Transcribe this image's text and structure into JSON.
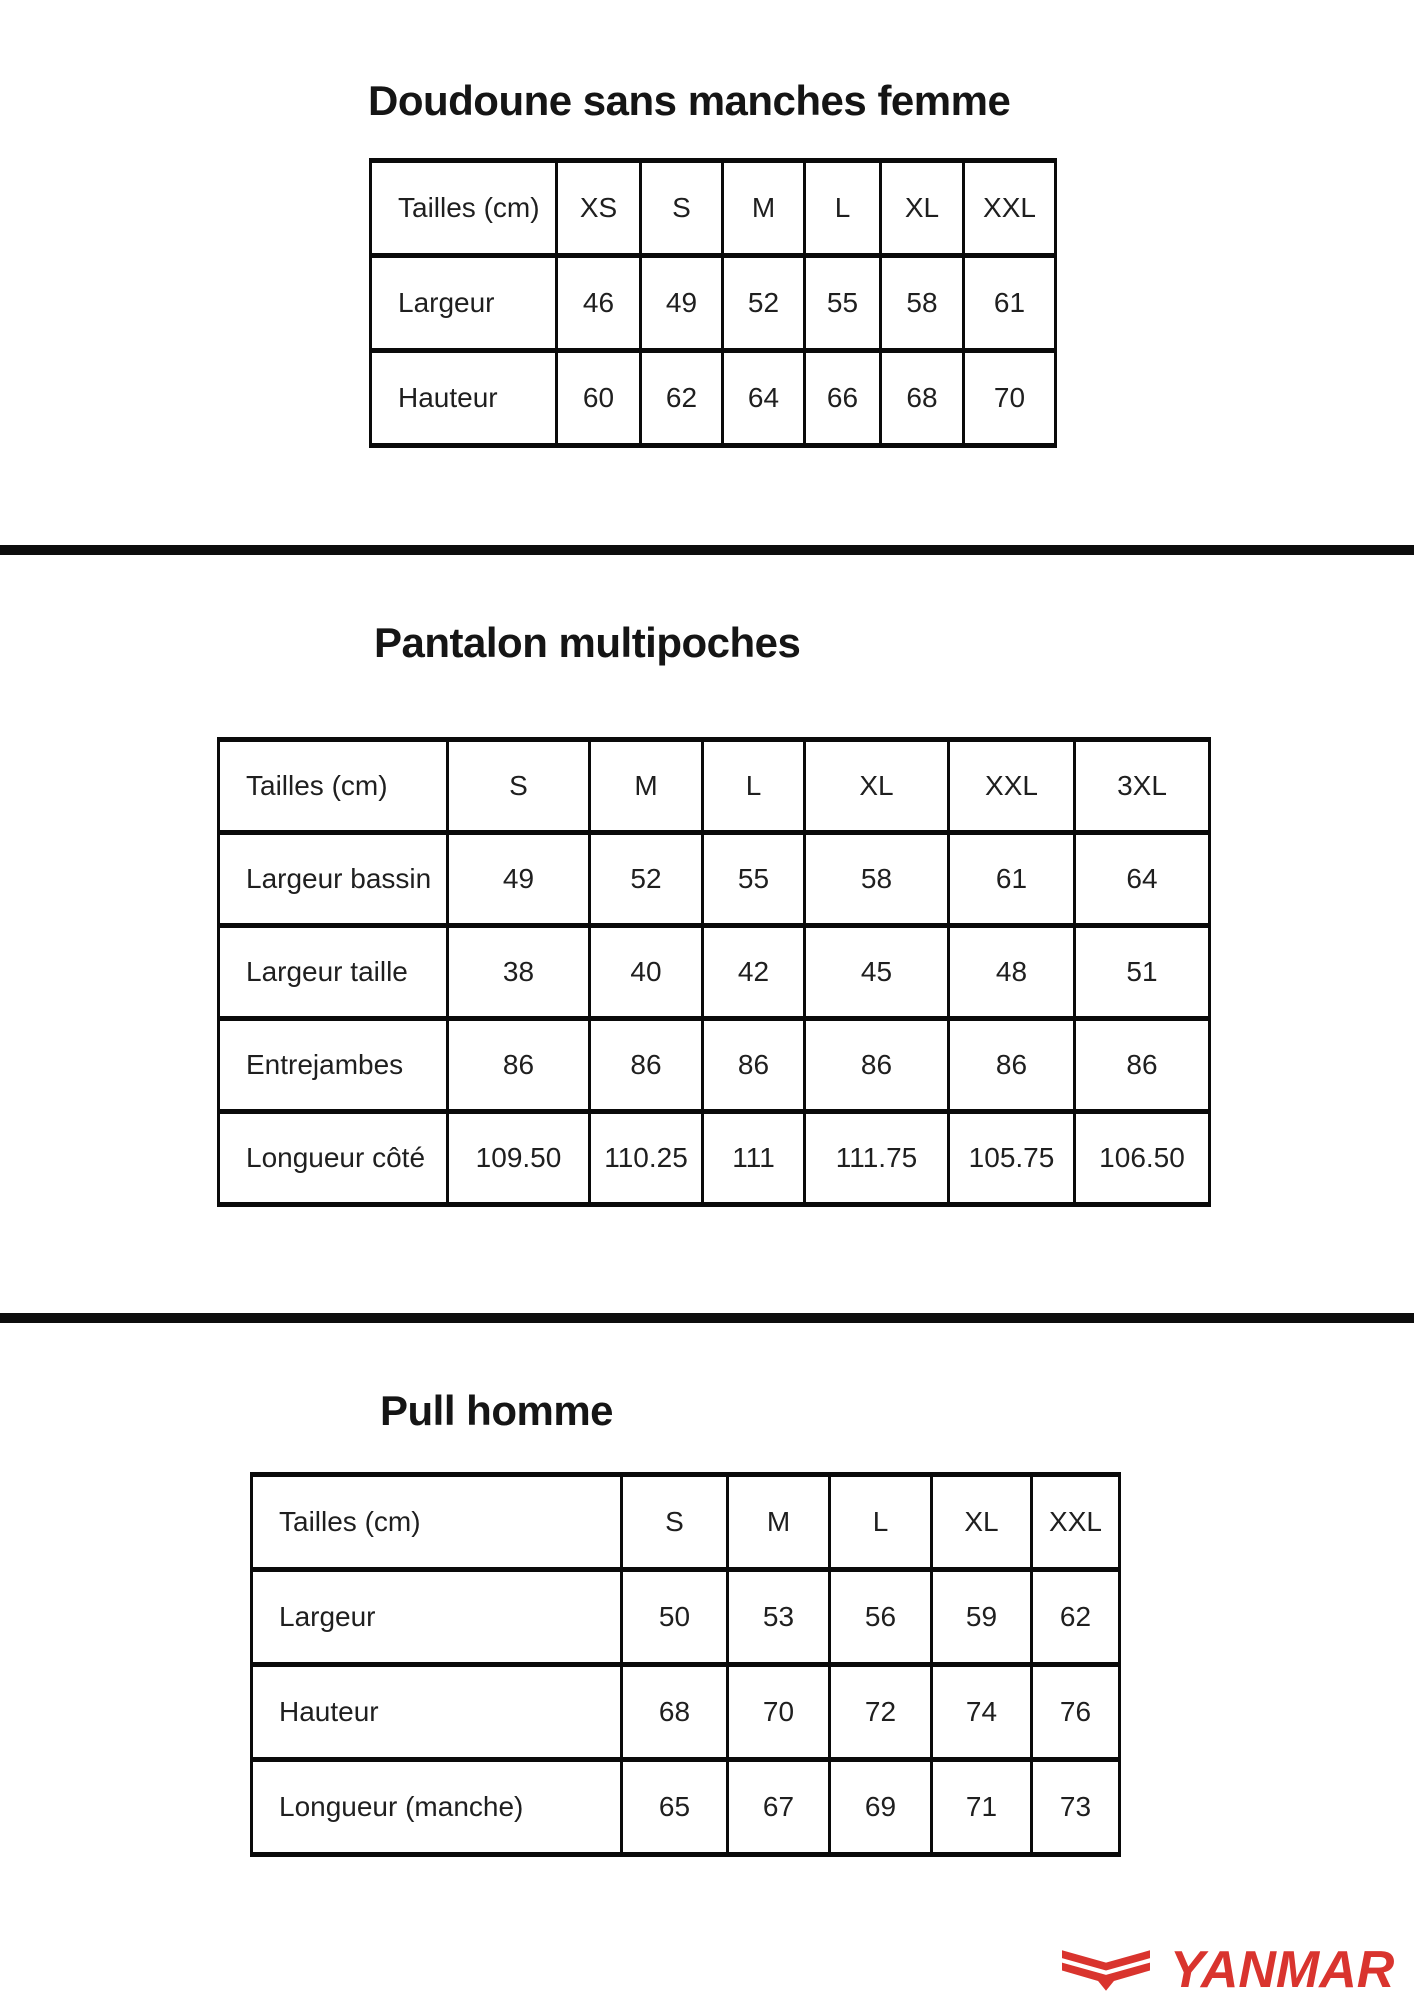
{
  "page": {
    "divider_color": "#0d0d0d",
    "text_color": "#1f1f1f"
  },
  "sections": [
    {
      "title": "Doudoune sans manches femme",
      "table": {
        "header": [
          "Tailles (cm)",
          "XS",
          "S",
          "M",
          "L",
          "XL",
          "XXL"
        ],
        "rows": [
          {
            "label": "Largeur",
            "values": [
              "46",
              "49",
              "52",
              "55",
              "58",
              "61"
            ]
          },
          {
            "label": "Hauteur",
            "values": [
              "60",
              "62",
              "64",
              "66",
              "68",
              "70"
            ]
          }
        ]
      }
    },
    {
      "title": "Pantalon multipoches",
      "table": {
        "header": [
          "Tailles (cm)",
          "S",
          "M",
          "L",
          "XL",
          "XXL",
          "3XL"
        ],
        "rows": [
          {
            "label": "Largeur bassin",
            "values": [
              "49",
              "52",
              "55",
              "58",
              "61",
              "64"
            ]
          },
          {
            "label": "Largeur taille",
            "values": [
              "38",
              "40",
              "42",
              "45",
              "48",
              "51"
            ]
          },
          {
            "label": "Entrejambes",
            "values": [
              "86",
              "86",
              "86",
              "86",
              "86",
              "86"
            ]
          },
          {
            "label": "Longueur côté",
            "values": [
              "109.50",
              "110.25",
              "111",
              "111.75",
              "105.75",
              "106.50"
            ]
          }
        ]
      }
    },
    {
      "title": "Pull homme",
      "table": {
        "header": [
          "Tailles (cm)",
          "S",
          "M",
          "L",
          "XL",
          "XXL"
        ],
        "rows": [
          {
            "label": "Largeur",
            "values": [
              "50",
              "53",
              "56",
              "59",
              "62"
            ]
          },
          {
            "label": "Hauteur",
            "values": [
              "68",
              "70",
              "72",
              "74",
              "76"
            ]
          },
          {
            "label": "Longueur (manche)",
            "values": [
              "65",
              "67",
              "69",
              "71",
              "73"
            ]
          }
        ]
      }
    }
  ],
  "logo": {
    "brand": "YANMAR",
    "color": "#d9342e",
    "icon": "yanmar-flying-y-icon"
  }
}
